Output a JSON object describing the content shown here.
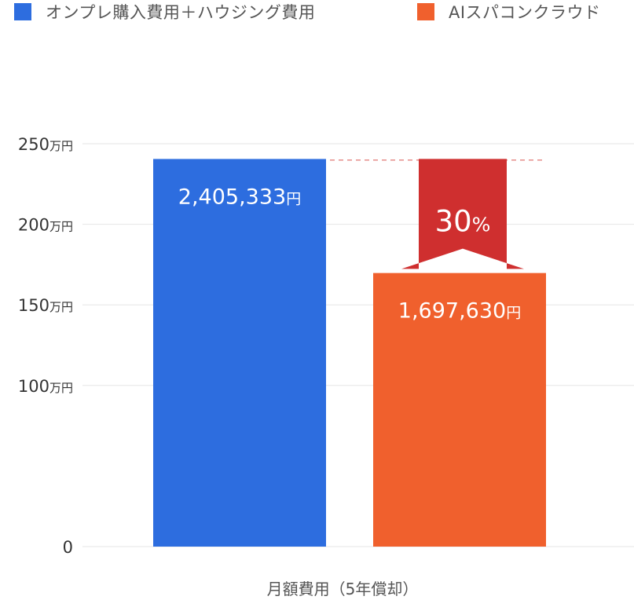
{
  "chart_data": {
    "type": "bar",
    "categories": [
      "月額費用（5年償却）"
    ],
    "series": [
      {
        "name": "オンプレ購入費用＋ハウジング費用",
        "color": "#2d6ddf",
        "values": [
          2405333
        ],
        "label": "2,405,333"
      },
      {
        "name": "AIスパコンクラウド",
        "color": "#f0602d",
        "values": [
          1697630
        ],
        "label": "1,697,630"
      }
    ],
    "value_unit": "円",
    "xlabel": "月額費用（5年償却）",
    "ylabel": "",
    "ylim": [
      0,
      2500000
    ],
    "yticks": [
      {
        "value": 0,
        "label": "0",
        "unit": ""
      },
      {
        "value": 1000000,
        "label": "100",
        "unit": "万円"
      },
      {
        "value": 1500000,
        "label": "150",
        "unit": "万円"
      },
      {
        "value": 2000000,
        "label": "200",
        "unit": "万円"
      },
      {
        "value": 2500000,
        "label": "250",
        "unit": "万円"
      }
    ],
    "grid": true,
    "legend_position": "top-left",
    "annotation": {
      "type": "reduction-arrow",
      "value": "30",
      "unit": "%",
      "color": "#cf2f2f",
      "guide_color": "#d9534f"
    }
  }
}
